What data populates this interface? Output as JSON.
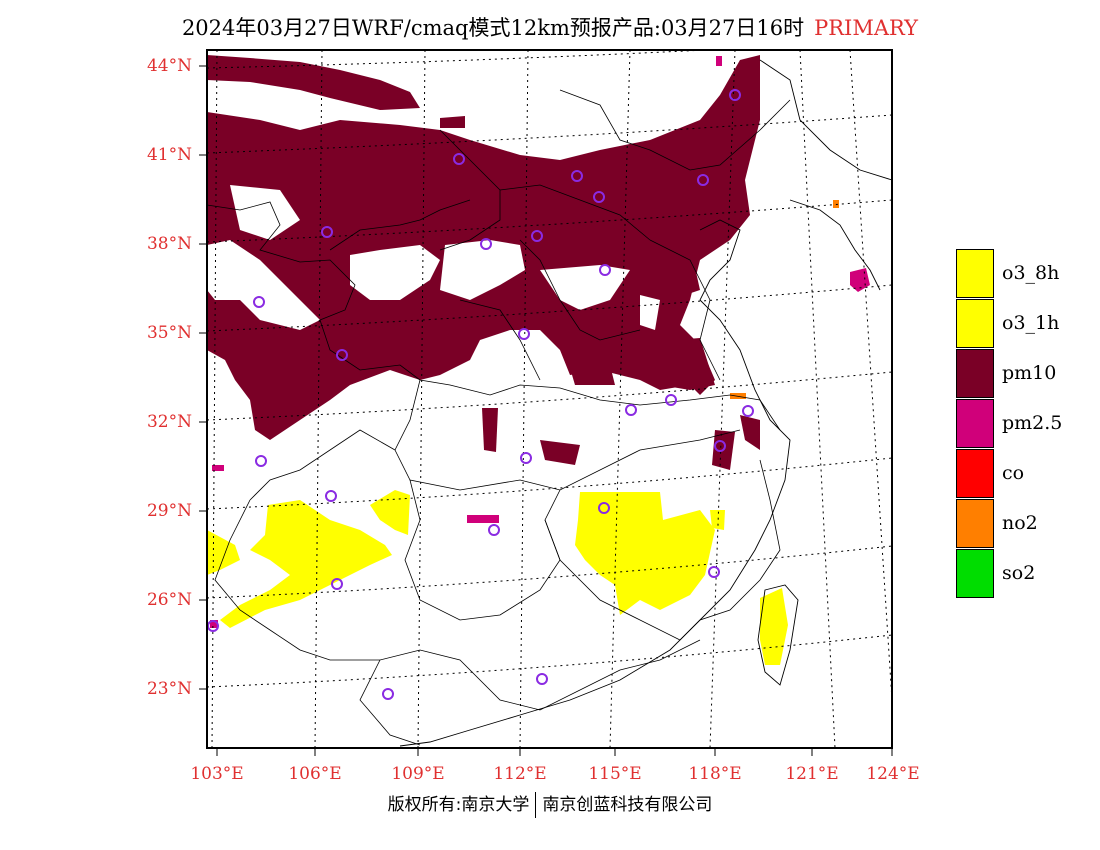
{
  "title": {
    "main": "2024年03月27日WRF/cmaq模式12km预报产品:03月27日16时",
    "tag": "PRIMARY"
  },
  "axes": {
    "lat_labels": [
      "44°N",
      "41°N",
      "38°N",
      "35°N",
      "32°N",
      "29°N",
      "26°N",
      "23°N"
    ],
    "lon_labels": [
      "103°E",
      "106°E",
      "109°E",
      "112°E",
      "115°E",
      "118°E",
      "121°E",
      "124°E"
    ]
  },
  "legend": {
    "items": [
      {
        "label": "o3_8h",
        "color": "#ffff00"
      },
      {
        "label": "o3_1h",
        "color": "#ffff00"
      },
      {
        "label": "pm10",
        "color": "#7a0026"
      },
      {
        "label": "pm2.5",
        "color": "#d0007a"
      },
      {
        "label": "co",
        "color": "#ff0000"
      },
      {
        "label": "no2",
        "color": "#ff7f00"
      },
      {
        "label": "so2",
        "color": "#00dd00"
      }
    ]
  },
  "colors": {
    "pm10": "#7a0026",
    "pm25": "#d0007a",
    "o3": "#ffff00",
    "no2": "#ff7f00",
    "station": "#8a2be2",
    "label": "#e03030"
  },
  "footer": {
    "left": "版权所有:南京大学",
    "right": "南京创蓝科技有限公司"
  }
}
